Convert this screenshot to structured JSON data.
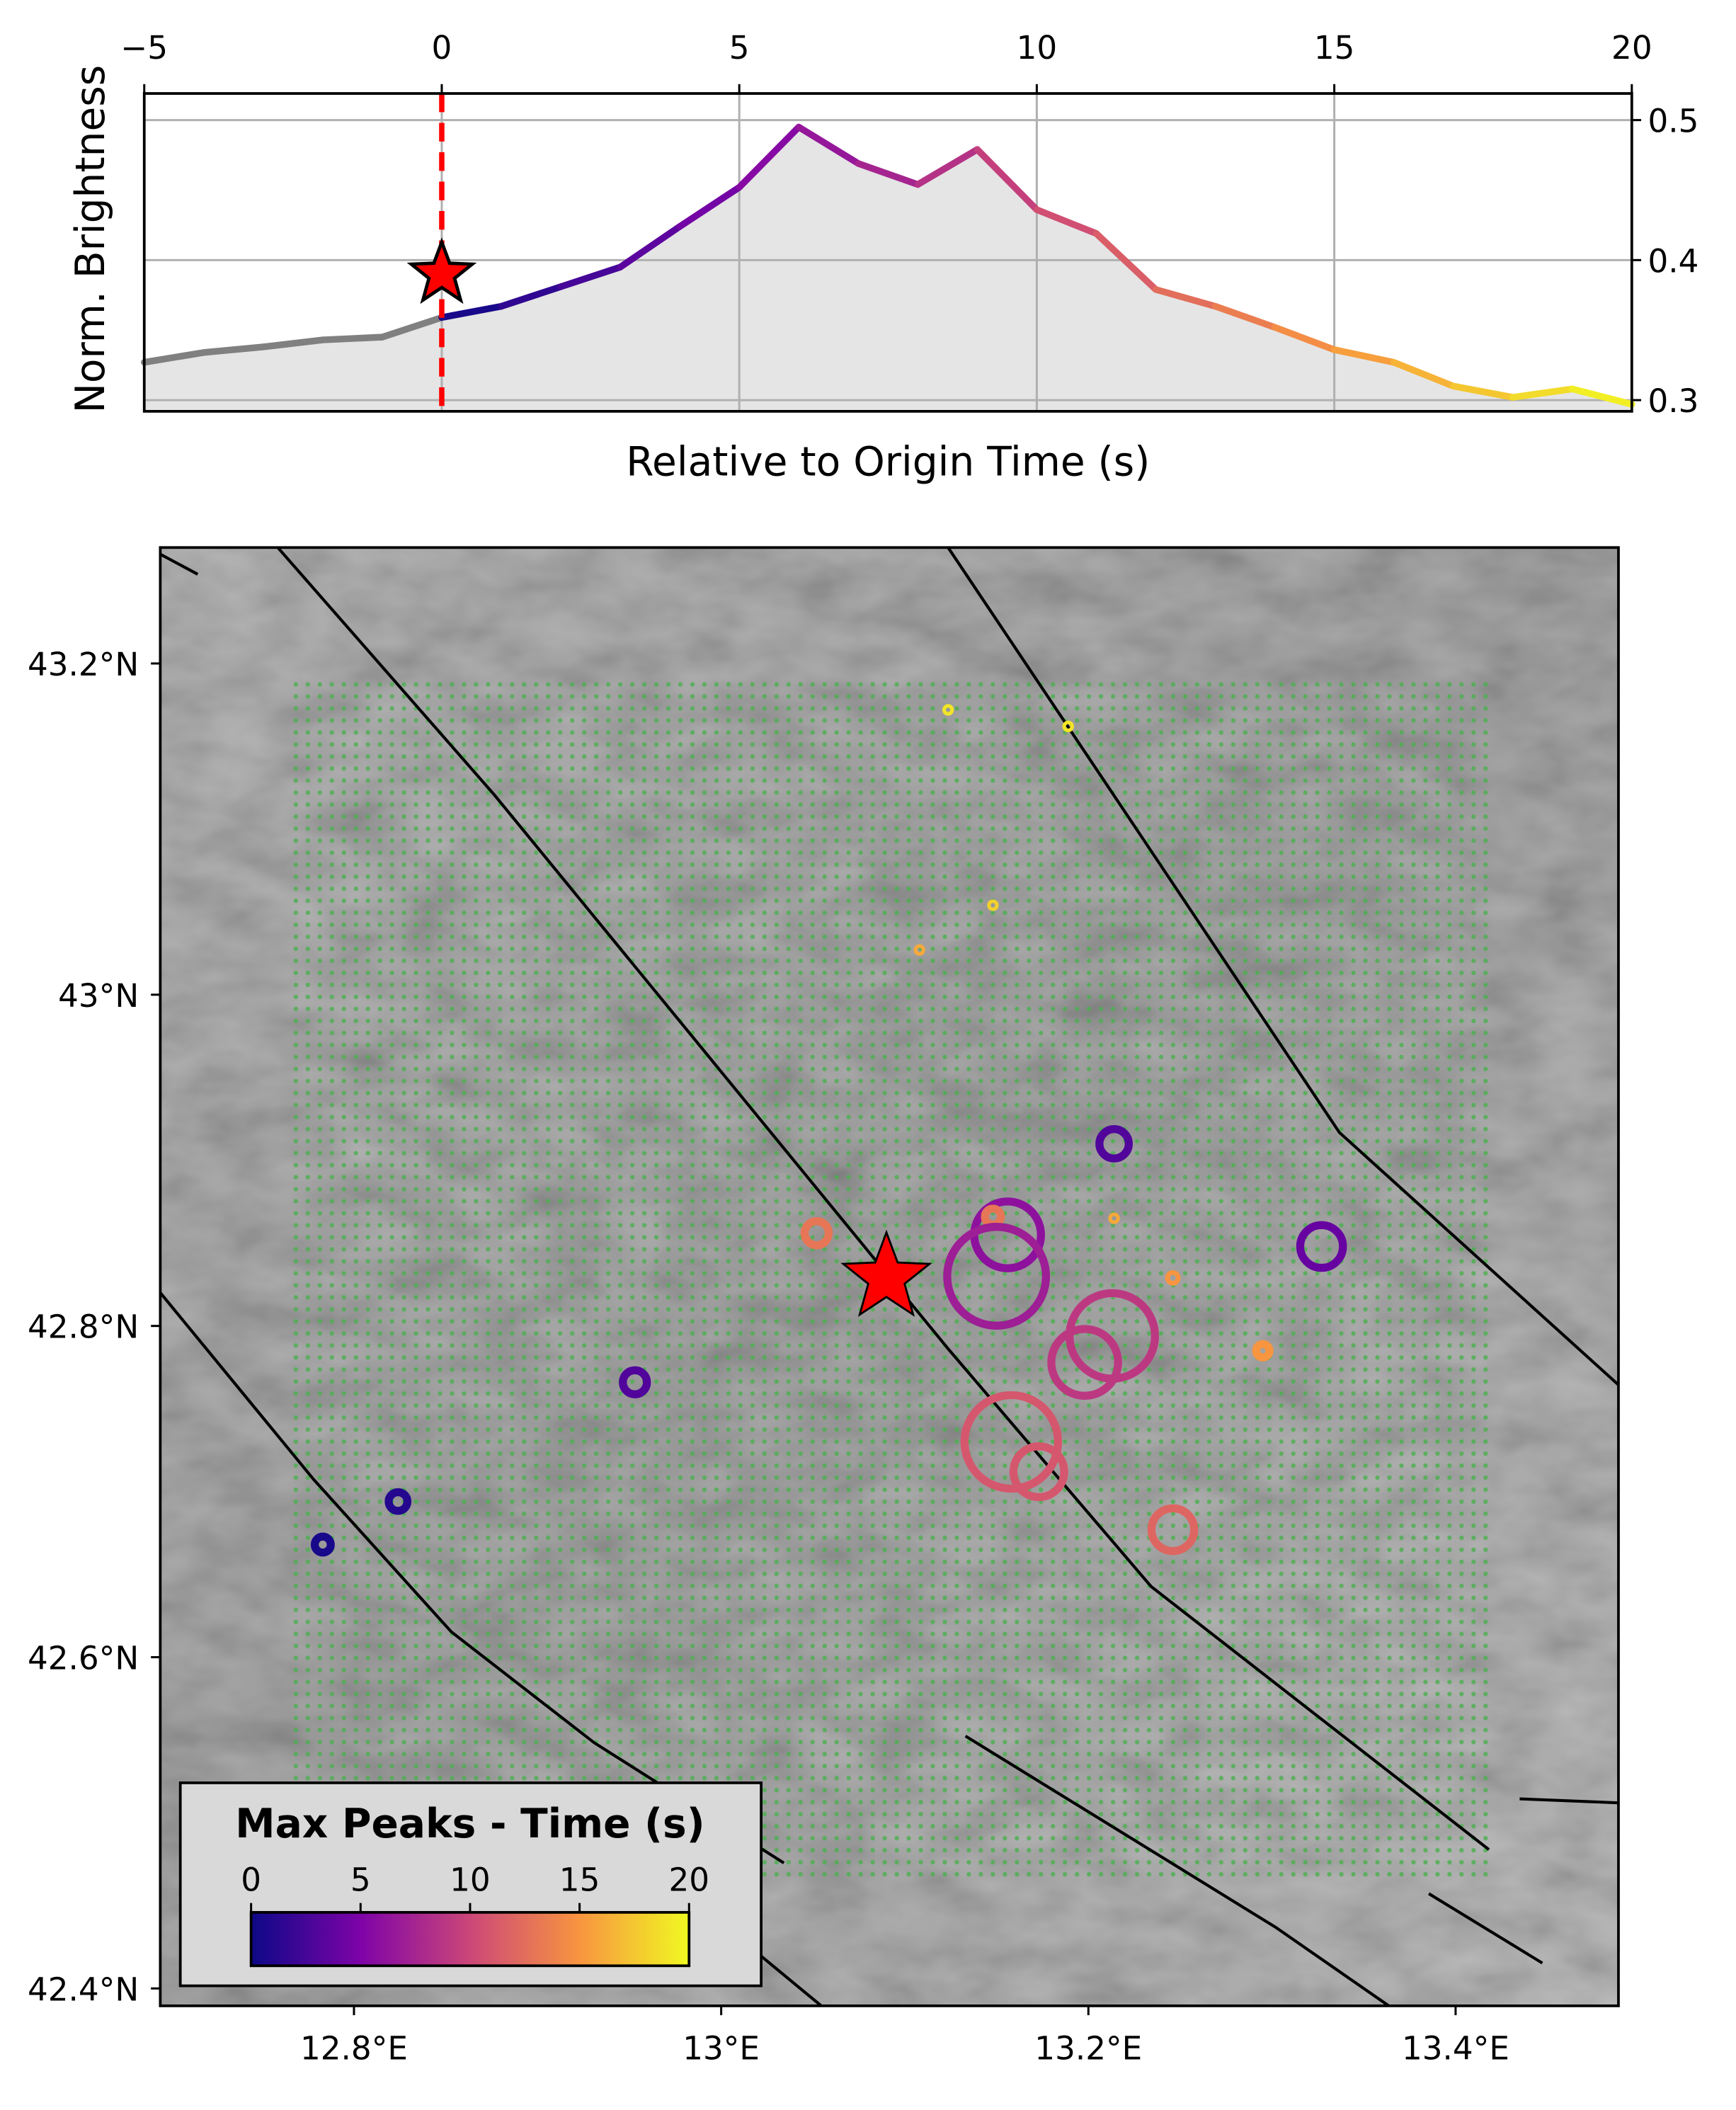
{
  "chart_data": [
    {
      "type": "line",
      "xlabel": "Relative to Origin Time (s)",
      "ylabel": "Norm. Brightness",
      "x": [
        -5,
        -4,
        -3,
        -2,
        -1,
        0,
        1,
        2,
        3,
        4,
        5,
        6,
        7,
        8,
        9,
        10,
        11,
        12,
        13,
        14,
        15,
        16,
        17,
        18,
        19,
        20
      ],
      "values": [
        0.327,
        0.334,
        0.338,
        0.343,
        0.345,
        0.359,
        0.367,
        0.381,
        0.395,
        0.424,
        0.452,
        0.495,
        0.469,
        0.454,
        0.479,
        0.436,
        0.419,
        0.379,
        0.367,
        0.352,
        0.336,
        0.327,
        0.31,
        0.302,
        0.308,
        0.297
      ],
      "colormap": "plasma",
      "color_before": "#808080",
      "fill_color": "#e5e5e5",
      "xlim": [
        -5,
        20
      ],
      "ylim": [
        0.292,
        0.519
      ],
      "xticks": [
        {
          "value": -5,
          "label": "−5"
        },
        0,
        5,
        10,
        15,
        20
      ],
      "yticks": [
        0.3,
        0.4,
        0.5
      ],
      "grid": true,
      "marker": {
        "x": 0,
        "y": 0.39,
        "color": "#ff0000"
      },
      "vline": {
        "x": 0,
        "color": "#ff0000"
      }
    },
    {
      "type": "scatter",
      "xlim": [
        12.6945,
        13.4887
      ],
      "ylim": [
        42.3895,
        43.27
      ],
      "xticks": [
        {
          "value": 12.8,
          "label": "12.8°E"
        },
        {
          "value": 13.0,
          "label": "13°E"
        },
        {
          "value": 13.2,
          "label": "13.2°E"
        },
        {
          "value": 13.4,
          "label": "13.4°E"
        }
      ],
      "yticks": [
        {
          "value": 42.4,
          "label": "42.4°N"
        },
        {
          "value": 42.6,
          "label": "42.6°N"
        },
        {
          "value": 42.8,
          "label": "42.8°N"
        },
        {
          "value": 43.0,
          "label": "43°N"
        },
        {
          "value": 43.2,
          "label": "43.2°N"
        }
      ],
      "x": [
        13.1236,
        13.189,
        13.148,
        13.108,
        13.214,
        13.156,
        13.148,
        13.214,
        13.052,
        13.15,
        13.327,
        13.246,
        13.213,
        13.198,
        13.295,
        12.953,
        13.158,
        13.173,
        13.246,
        12.824,
        12.783
      ],
      "y": [
        43.172,
        43.162,
        43.054,
        43.027,
        42.91,
        42.855,
        42.866,
        42.865,
        42.856,
        42.83,
        42.848,
        42.829,
        42.794,
        42.778,
        42.785,
        42.766,
        42.73,
        42.712,
        42.677,
        42.694,
        42.668
      ],
      "values": [
        19,
        19,
        18,
        16,
        3,
        6,
        13,
        16,
        13,
        7,
        4,
        15,
        9,
        9,
        15,
        3,
        11,
        11,
        12,
        1,
        0.5
      ],
      "sizes": [
        3,
        3,
        3,
        3,
        11,
        25,
        6,
        3,
        9,
        37,
        16,
        4,
        32,
        25,
        5,
        9,
        35,
        19,
        16,
        7,
        6
      ],
      "colormap": "plasma",
      "epicenter": {
        "x": 13.09,
        "y": 42.829,
        "color": "#ff0000"
      },
      "colorbar": {
        "title": "Max Peaks - Time (s)",
        "lim": [
          0,
          20
        ],
        "ticks": [
          0,
          5,
          10,
          15,
          20
        ]
      }
    }
  ]
}
